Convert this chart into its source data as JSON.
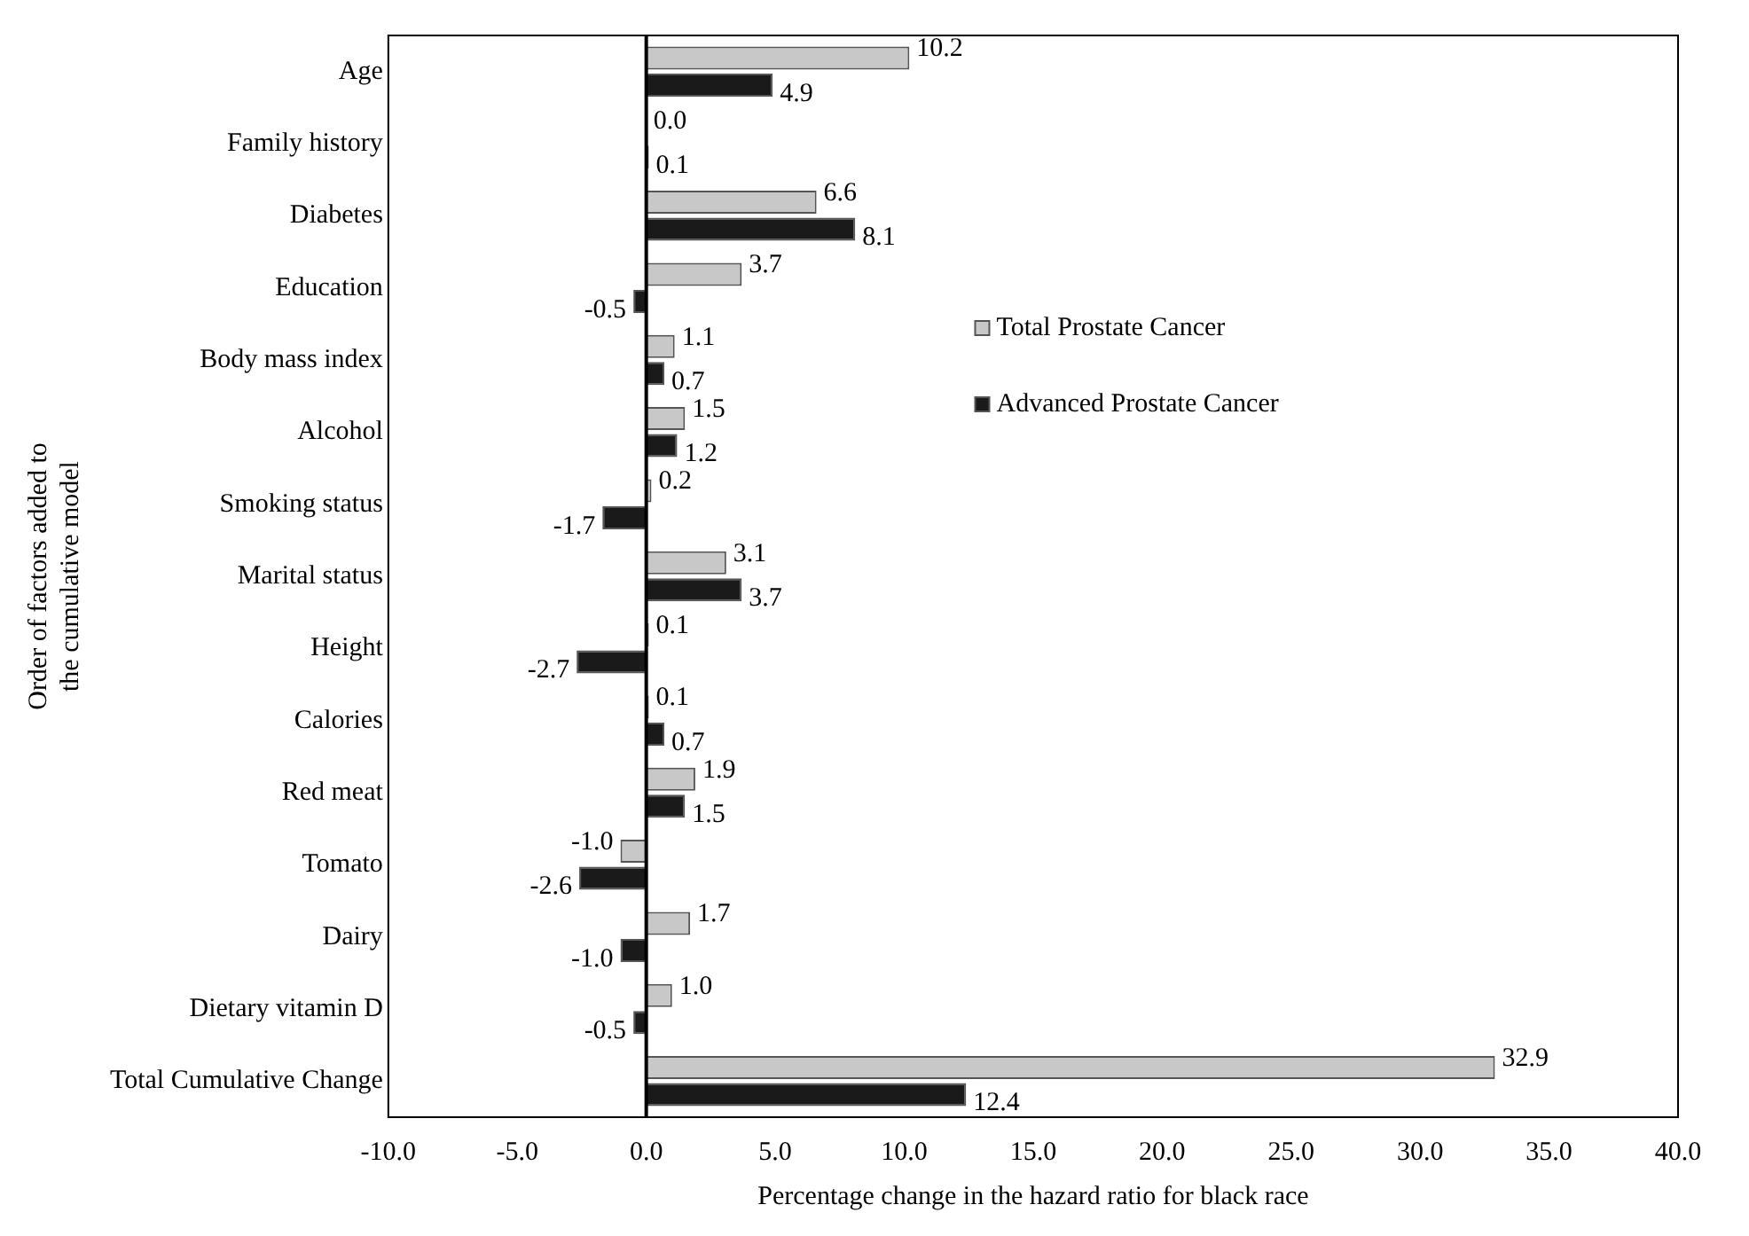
{
  "chart_data": {
    "type": "bar",
    "orientation": "horizontal",
    "xlabel": "Percentage change in the hazard ratio for black race",
    "ylabel": "Order of factors added to the cumulative model",
    "categories": [
      "Age",
      "Family history",
      "Diabetes",
      "Education",
      "Body mass index",
      "Alcohol",
      "Smoking status",
      "Marital status",
      "Height",
      "Calories",
      "Red meat",
      "Tomato",
      "Dairy",
      "Dietary vitamin D",
      "Total Cumulative Change"
    ],
    "series": [
      {
        "name": "Total Prostate Cancer",
        "color": "#c8c8c8",
        "values": [
          10.2,
          0.0,
          6.6,
          3.7,
          1.1,
          1.5,
          0.2,
          3.1,
          0.1,
          0.1,
          1.9,
          -1.0,
          1.7,
          1.0,
          32.9
        ],
        "value_labels": [
          "10.2",
          "0.0",
          "6.6",
          "3.7",
          "1.1",
          "1.5",
          "0.2",
          "3.1",
          "0.1",
          "0.1",
          "1.9",
          "-1.0",
          "1.7",
          "1.0",
          "32.9"
        ]
      },
      {
        "name": "Advanced Prostate Cancer",
        "color": "#1a1a1a",
        "values": [
          4.9,
          0.1,
          8.1,
          -0.5,
          0.7,
          1.2,
          -1.7,
          3.7,
          -2.7,
          0.7,
          1.5,
          -2.6,
          -1.0,
          -0.5,
          12.4
        ],
        "value_labels": [
          "4.9",
          "0.1",
          "8.1",
          "-0.5",
          "0.7",
          "1.2",
          "-1.7",
          "3.7",
          "-2.7",
          "0.7",
          "1.5",
          "-2.6",
          "-1.0",
          "-0.5",
          "12.4"
        ]
      }
    ],
    "xlim": [
      -10,
      40
    ],
    "xticks": [
      {
        "value": -10,
        "label": "-10.0"
      },
      {
        "value": -5,
        "label": "-5.0"
      },
      {
        "value": 0,
        "label": "0.0"
      },
      {
        "value": 5,
        "label": "5.0"
      },
      {
        "value": 10,
        "label": "10.0"
      },
      {
        "value": 15,
        "label": "15.0"
      },
      {
        "value": 20,
        "label": "20.0"
      },
      {
        "value": 25,
        "label": "25.0"
      },
      {
        "value": 30,
        "label": "30.0"
      },
      {
        "value": 35,
        "label": "35.0"
      },
      {
        "value": 40,
        "label": "40.0"
      }
    ],
    "ref_lines": [
      {
        "axis": "x",
        "value": 0,
        "color": "#000000"
      }
    ],
    "grid": false,
    "legend": "top right"
  }
}
